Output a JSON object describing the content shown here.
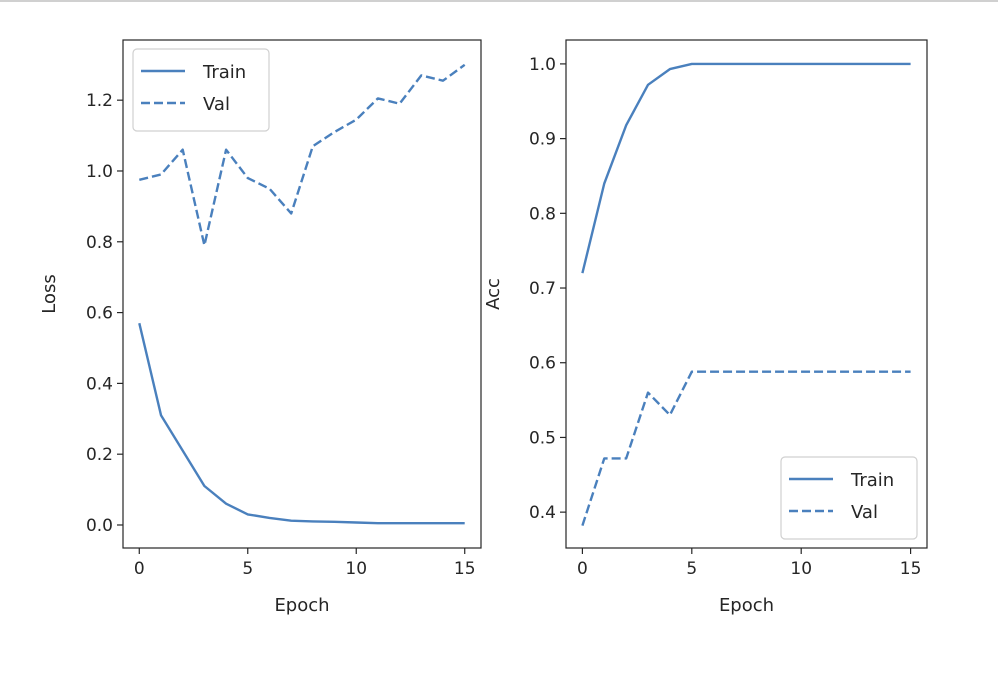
{
  "colors": {
    "line": "#4a80bd",
    "axis": "#262626",
    "legend_border": "#d0d0d0",
    "top_rule": "#d0d0d0"
  },
  "chart_data": [
    {
      "type": "line",
      "title": "",
      "xlabel": "Epoch",
      "ylabel": "Loss",
      "xlim": [
        -0.75,
        15.75
      ],
      "ylim": [
        -0.065,
        1.37
      ],
      "xticks": [
        0,
        5,
        10,
        15
      ],
      "yticks": [
        0.0,
        0.2,
        0.4,
        0.6,
        0.8,
        1.0,
        1.2
      ],
      "ytick_labels": [
        "0.0",
        "0.2",
        "0.4",
        "0.6",
        "0.8",
        "1.0",
        "1.2"
      ],
      "legend": "upper-left",
      "grid": false,
      "x": [
        0,
        1,
        2,
        3,
        4,
        5,
        6,
        7,
        8,
        9,
        10,
        11,
        12,
        13,
        14,
        15
      ],
      "series": [
        {
          "name": "Train",
          "style": "solid",
          "values": [
            0.57,
            0.31,
            0.21,
            0.11,
            0.06,
            0.03,
            0.02,
            0.012,
            0.01,
            0.009,
            0.007,
            0.005,
            0.005,
            0.005,
            0.005,
            0.005
          ]
        },
        {
          "name": "Val",
          "style": "dashed",
          "values": [
            0.975,
            0.99,
            1.06,
            0.79,
            1.06,
            0.98,
            0.95,
            0.88,
            1.07,
            1.11,
            1.145,
            1.205,
            1.19,
            1.27,
            1.255,
            1.3
          ]
        }
      ]
    },
    {
      "type": "line",
      "title": "",
      "xlabel": "Epoch",
      "ylabel": "Acc",
      "xlim": [
        -0.75,
        15.75
      ],
      "ylim": [
        0.352,
        1.032
      ],
      "xticks": [
        0,
        5,
        10,
        15
      ],
      "yticks": [
        0.4,
        0.5,
        0.6,
        0.7,
        0.8,
        0.9,
        1.0
      ],
      "ytick_labels": [
        "0.4",
        "0.5",
        "0.6",
        "0.7",
        "0.8",
        "0.9",
        "1.0"
      ],
      "legend": "lower-right",
      "grid": false,
      "x": [
        0,
        1,
        2,
        3,
        4,
        5,
        6,
        7,
        8,
        9,
        10,
        11,
        12,
        13,
        14,
        15
      ],
      "series": [
        {
          "name": "Train",
          "style": "solid",
          "values": [
            0.72,
            0.84,
            0.918,
            0.972,
            0.993,
            1.0,
            1.0,
            1.0,
            1.0,
            1.0,
            1.0,
            1.0,
            1.0,
            1.0,
            1.0,
            1.0
          ]
        },
        {
          "name": "Val",
          "style": "dashed",
          "values": [
            0.382,
            0.472,
            0.472,
            0.56,
            0.53,
            0.588,
            0.588,
            0.588,
            0.588,
            0.588,
            0.588,
            0.588,
            0.588,
            0.588,
            0.588,
            0.588
          ]
        }
      ]
    }
  ]
}
